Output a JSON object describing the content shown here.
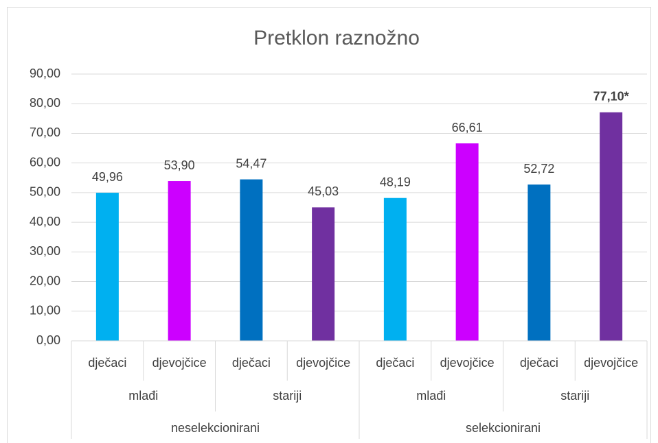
{
  "chart_data": {
    "type": "bar",
    "title": "Pretklon raznožno",
    "categories": [
      "dječaci",
      "djevojčice",
      "dječaci",
      "djevojčice",
      "dječaci",
      "djevojčice",
      "dječaci",
      "djevojčice"
    ],
    "categories_level2": [
      "mlađi",
      "stariji",
      "mlađi",
      "stariji"
    ],
    "categories_level3": [
      "neselekcionirani",
      "selekcionirani"
    ],
    "values": [
      49.96,
      53.9,
      54.47,
      45.03,
      48.19,
      66.61,
      52.72,
      77.1
    ],
    "value_labels": [
      "49,96",
      "53,90",
      "54,47",
      "45,03",
      "48,19",
      "66,61",
      "52,72",
      "77,10*"
    ],
    "value_labels_bold": [
      false,
      false,
      false,
      false,
      false,
      false,
      false,
      true
    ],
    "colors": [
      "#00b0f0",
      "#cc00ff",
      "#0070c0",
      "#7030a0",
      "#00b0f0",
      "#cc00ff",
      "#0070c0",
      "#7030a0"
    ],
    "ylim": [
      0,
      90
    ],
    "yticks": [
      {
        "value": 0,
        "label": "0,00"
      },
      {
        "value": 10,
        "label": "10,00"
      },
      {
        "value": 20,
        "label": "20,00"
      },
      {
        "value": 30,
        "label": "30,00"
      },
      {
        "value": 40,
        "label": "40,00"
      },
      {
        "value": 50,
        "label": "50,00"
      },
      {
        "value": 60,
        "label": "60,00"
      },
      {
        "value": 70,
        "label": "70,00"
      },
      {
        "value": 80,
        "label": "80,00"
      },
      {
        "value": 90,
        "label": "90,00"
      }
    ],
    "grid": true
  }
}
